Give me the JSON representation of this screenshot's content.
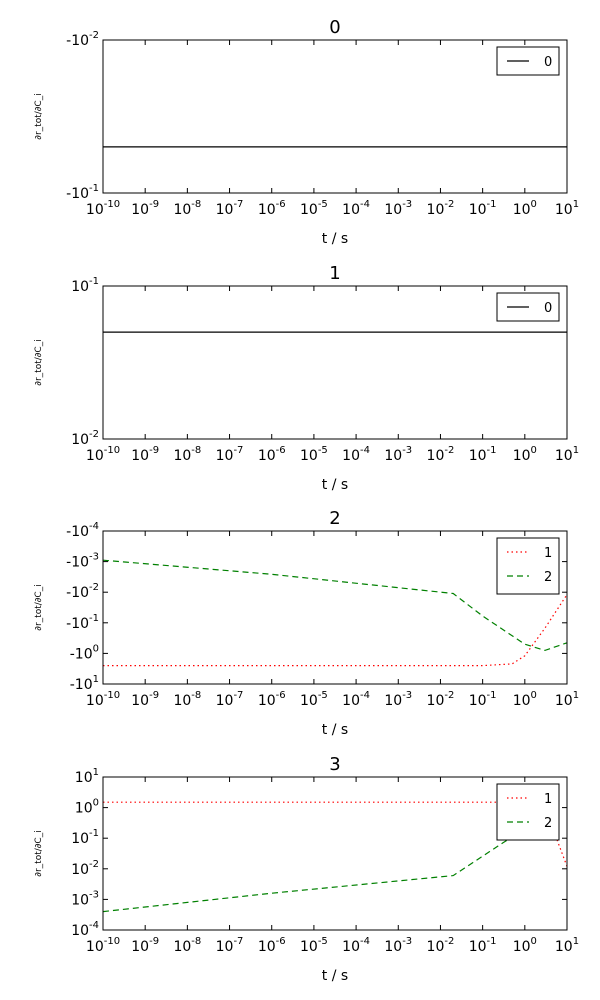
{
  "chart_data": [
    {
      "type": "line",
      "title": "0",
      "xlabel": "t / s",
      "ylabel": "∂r_tot/∂C_i",
      "xscale": "log",
      "yscale": "log (negative values)",
      "xlim": [
        "1e-10",
        "1e1"
      ],
      "xtick_exponents": [
        "-10",
        "-9",
        "-8",
        "-7",
        "-6",
        "-5",
        "-4",
        "-3",
        "-2",
        "-1",
        "0",
        "1"
      ],
      "ytick_labels": [
        "-10^-2",
        "-10^-1"
      ],
      "ylim": [
        "-1e-2",
        "-1e-1"
      ],
      "legend": "upper right",
      "series": [
        {
          "name": "0",
          "color": "#000000",
          "style": "solid",
          "x": [
            "1e-10",
            "1e1"
          ],
          "y": [
            "-0.05",
            "-0.05"
          ]
        }
      ]
    },
    {
      "type": "line",
      "title": "1",
      "xlabel": "t / s",
      "ylabel": "∂r_tot/∂C_i",
      "xscale": "log",
      "yscale": "log",
      "xlim": [
        "1e-10",
        "1e1"
      ],
      "xtick_exponents": [
        "-10",
        "-9",
        "-8",
        "-7",
        "-6",
        "-5",
        "-4",
        "-3",
        "-2",
        "-1",
        "0",
        "1"
      ],
      "ytick_labels": [
        "10^-1",
        "10^-2"
      ],
      "ylim": [
        "1e-1",
        "1e-2"
      ],
      "legend": "upper right",
      "series": [
        {
          "name": "0",
          "color": "#000000",
          "style": "solid",
          "x": [
            "1e-10",
            "1e1"
          ],
          "y": [
            "0.05",
            "0.05"
          ]
        }
      ]
    },
    {
      "type": "line",
      "title": "2",
      "xlabel": "t / s",
      "ylabel": "∂r_tot/∂C_i",
      "xscale": "log",
      "yscale": "log (negative values)",
      "xlim": [
        "1e-10",
        "1e1"
      ],
      "xtick_exponents": [
        "-10",
        "-9",
        "-8",
        "-7",
        "-6",
        "-5",
        "-4",
        "-3",
        "-2",
        "-1",
        "0",
        "1"
      ],
      "ytick_labels": [
        "-10^-4",
        "-10^-3",
        "-10^-2",
        "-10^-1",
        "-10^0",
        "-10^1"
      ],
      "ylim": [
        "-1e-4",
        "-1e1"
      ],
      "legend": "upper right",
      "series": [
        {
          "name": "1",
          "color": "#ff0000",
          "style": "dotted",
          "x": [
            "1e-10",
            "1e-3",
            "0.1",
            "0.5",
            "1",
            "3",
            "10"
          ],
          "y": [
            "-2.5",
            "-2.5",
            "-2.5",
            "-2.2",
            "-1.2",
            "-0.15",
            "-0.012"
          ]
        },
        {
          "name": "2",
          "color": "#008000",
          "style": "dashed",
          "x": [
            "1e-10",
            "1e-6",
            "0.02",
            "0.1",
            "1",
            "3",
            "10"
          ],
          "y": [
            "-0.0009",
            "-0.0026",
            "-0.011",
            "-0.06",
            "-0.5",
            "-0.8",
            "-0.45"
          ]
        }
      ]
    },
    {
      "type": "line",
      "title": "3",
      "xlabel": "t / s",
      "ylabel": "∂r_tot/∂C_i",
      "xscale": "log",
      "yscale": "log",
      "xlim": [
        "1e-10",
        "1e1"
      ],
      "xtick_exponents": [
        "-10",
        "-9",
        "-8",
        "-7",
        "-6",
        "-5",
        "-4",
        "-3",
        "-2",
        "-1",
        "0",
        "1"
      ],
      "ytick_labels": [
        "10^1",
        "10^0",
        "10^-1",
        "10^-2",
        "10^-3",
        "10^-4"
      ],
      "ylim": [
        "1e1",
        "1e-4"
      ],
      "legend": "upper right",
      "series": [
        {
          "name": "1",
          "color": "#ff0000",
          "style": "dotted",
          "x": [
            "1e-10",
            "0.1",
            "1",
            "3",
            "10"
          ],
          "y": [
            "1.5",
            "1.5",
            "1.5",
            "1.0",
            "0.012"
          ]
        },
        {
          "name": "2",
          "color": "#008000",
          "style": "dashed",
          "x": [
            "1e-10",
            "1e-6",
            "0.02",
            "0.3",
            "1"
          ],
          "y": [
            "0.0004",
            "0.0016",
            "0.006",
            "0.07",
            "0.2"
          ]
        }
      ]
    }
  ]
}
